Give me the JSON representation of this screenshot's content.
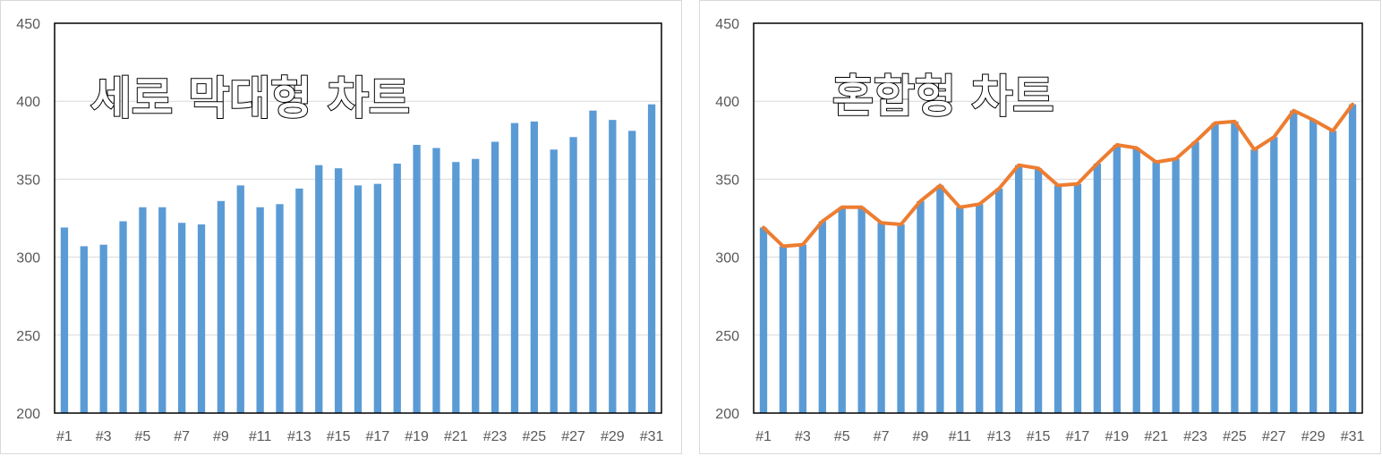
{
  "chart_data": [
    {
      "type": "bar",
      "title": "세로 막대형 차트",
      "categories": [
        "#1",
        "#2",
        "#3",
        "#4",
        "#5",
        "#6",
        "#7",
        "#8",
        "#9",
        "#10",
        "#11",
        "#12",
        "#13",
        "#14",
        "#15",
        "#16",
        "#17",
        "#18",
        "#19",
        "#20",
        "#21",
        "#22",
        "#23",
        "#24",
        "#25",
        "#26",
        "#27",
        "#28",
        "#29",
        "#30",
        "#31"
      ],
      "values": [
        319,
        307,
        308,
        323,
        332,
        332,
        322,
        321,
        336,
        346,
        332,
        334,
        344,
        359,
        357,
        346,
        347,
        360,
        372,
        370,
        361,
        363,
        374,
        386,
        387,
        369,
        377,
        394,
        388,
        381,
        398
      ],
      "ylim": [
        200,
        450
      ],
      "yticks": [
        "200",
        "250",
        "300",
        "350",
        "400",
        "450"
      ],
      "xtick_labels": [
        "#1",
        "#3",
        "#5",
        "#7",
        "#9",
        "#11",
        "#13",
        "#15",
        "#17",
        "#19",
        "#21",
        "#23",
        "#25",
        "#27",
        "#29",
        "#31"
      ],
      "grid": true,
      "colors": {
        "bar": "#5b9bd5",
        "grid": "#d9d9d9",
        "axis": "#000000"
      }
    },
    {
      "type": "bar+line",
      "title": "혼합형 차트",
      "categories": [
        "#1",
        "#2",
        "#3",
        "#4",
        "#5",
        "#6",
        "#7",
        "#8",
        "#9",
        "#10",
        "#11",
        "#12",
        "#13",
        "#14",
        "#15",
        "#16",
        "#17",
        "#18",
        "#19",
        "#20",
        "#21",
        "#22",
        "#23",
        "#24",
        "#25",
        "#26",
        "#27",
        "#28",
        "#29",
        "#30",
        "#31"
      ],
      "values": [
        319,
        307,
        308,
        323,
        332,
        332,
        322,
        321,
        336,
        346,
        332,
        334,
        344,
        359,
        357,
        346,
        347,
        360,
        372,
        370,
        361,
        363,
        374,
        386,
        387,
        369,
        377,
        394,
        388,
        381,
        398
      ],
      "line_values": [
        319,
        307,
        308,
        323,
        332,
        332,
        322,
        321,
        336,
        346,
        332,
        334,
        344,
        359,
        357,
        346,
        347,
        360,
        372,
        370,
        361,
        363,
        374,
        386,
        387,
        369,
        377,
        394,
        388,
        381,
        398
      ],
      "ylim": [
        200,
        450
      ],
      "yticks": [
        "200",
        "250",
        "300",
        "350",
        "400",
        "450"
      ],
      "xtick_labels": [
        "#1",
        "#3",
        "#5",
        "#7",
        "#9",
        "#11",
        "#13",
        "#15",
        "#17",
        "#19",
        "#21",
        "#23",
        "#25",
        "#27",
        "#29",
        "#31"
      ],
      "grid": true,
      "colors": {
        "bar": "#5b9bd5",
        "line": "#ed7d31",
        "grid": "#d9d9d9",
        "axis": "#000000"
      }
    }
  ]
}
